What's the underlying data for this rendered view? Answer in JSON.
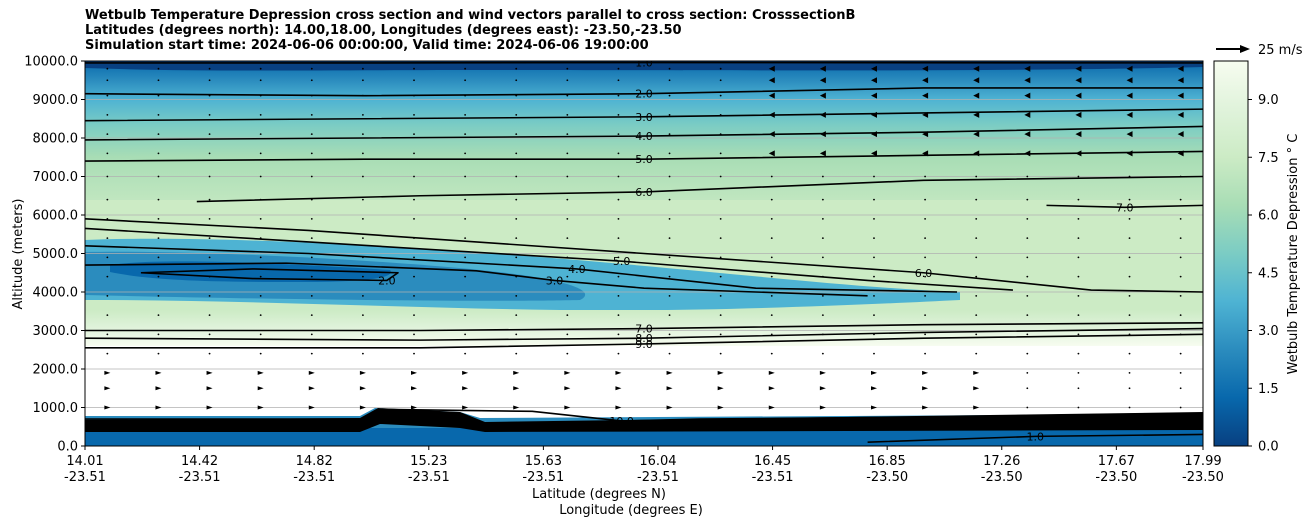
{
  "chart_data": {
    "type": "contour",
    "title_lines": [
      "Wetbulb Temperature Depression cross section and wind vectors parallel to cross section: CrosssectionB",
      "Latitudes (degrees north): 14.00,18.00, Longitudes (degrees east): -23.50,-23.50",
      "Simulation start time: 2024-06-06 00:00:00, Valid time: 2024-06-06 19:00:00"
    ],
    "ylabel": "Altitude (meters)",
    "xlabel_lat": "Latitude (degrees N)",
    "xlabel_lon": "Longitude (degrees E)",
    "ylim": [
      0,
      10000
    ],
    "y_ticks": [
      {
        "value": 0,
        "label": "0.0"
      },
      {
        "value": 1000,
        "label": "1000.0"
      },
      {
        "value": 2000,
        "label": "2000.0"
      },
      {
        "value": 3000,
        "label": "3000.0"
      },
      {
        "value": 4000,
        "label": "4000.0"
      },
      {
        "value": 5000,
        "label": "5000.0"
      },
      {
        "value": 6000,
        "label": "6000.0"
      },
      {
        "value": 7000,
        "label": "7000.0"
      },
      {
        "value": 8000,
        "label": "8000.0"
      },
      {
        "value": 9000,
        "label": "9000.0"
      },
      {
        "value": 10000,
        "label": "10000.0"
      }
    ],
    "x_ticks": [
      {
        "lat": "14.01",
        "lon": "-23.51"
      },
      {
        "lat": "14.42",
        "lon": "-23.51"
      },
      {
        "lat": "14.82",
        "lon": "-23.51"
      },
      {
        "lat": "15.23",
        "lon": "-23.51"
      },
      {
        "lat": "15.63",
        "lon": "-23.51"
      },
      {
        "lat": "16.04",
        "lon": "-23.51"
      },
      {
        "lat": "16.45",
        "lon": "-23.51"
      },
      {
        "lat": "16.85",
        "lon": "-23.50"
      },
      {
        "lat": "17.26",
        "lon": "-23.50"
      },
      {
        "lat": "17.67",
        "lon": "-23.50"
      },
      {
        "lat": "17.99",
        "lon": "-23.50"
      }
    ],
    "colorbar": {
      "label": "Wetbulb Temperature Depression ° C",
      "range": [
        0,
        10
      ],
      "ticks": [
        "0.0",
        "1.5",
        "3.0",
        "4.5",
        "6.0",
        "7.5",
        "9.0"
      ],
      "tick_values": [
        0,
        1.5,
        3,
        4.5,
        6,
        7.5,
        9
      ],
      "colors": [
        "#084081",
        "#0868ac",
        "#2b8cbe",
        "#4eb3d3",
        "#7bccc4",
        "#a8ddb5",
        "#ccebc5",
        "#e0f3db",
        "#f7fcf0"
      ]
    },
    "vector_key": {
      "label": "25 m/s",
      "speed": 25
    },
    "grid": true,
    "contours": [
      {
        "level": "1.0",
        "pts": [
          [
            0,
            9950
          ],
          [
            0.25,
            9950
          ],
          [
            0.5,
            9960
          ],
          [
            1,
            9950
          ]
        ]
      },
      {
        "level": "2.0",
        "pts": [
          [
            0,
            9150
          ],
          [
            0.25,
            9100
          ],
          [
            0.5,
            9150
          ],
          [
            0.75,
            9300
          ],
          [
            1,
            9300
          ]
        ]
      },
      {
        "level": "3.0",
        "pts": [
          [
            0,
            8450
          ],
          [
            0.25,
            8500
          ],
          [
            0.5,
            8550
          ],
          [
            0.75,
            8650
          ],
          [
            1,
            8750
          ]
        ]
      },
      {
        "level": "4.0",
        "pts": [
          [
            0,
            7950
          ],
          [
            0.25,
            8000
          ],
          [
            0.5,
            8050
          ],
          [
            0.75,
            8150
          ],
          [
            1,
            8300
          ]
        ]
      },
      {
        "level": "5.0",
        "pts": [
          [
            0,
            7400
          ],
          [
            0.25,
            7450
          ],
          [
            0.5,
            7450
          ],
          [
            0.75,
            7550
          ],
          [
            1,
            7650
          ]
        ]
      },
      {
        "level": "6.0",
        "pts": [
          [
            0.1,
            6350
          ],
          [
            0.3,
            6500
          ],
          [
            0.5,
            6600
          ],
          [
            0.75,
            6900
          ],
          [
            1,
            7000
          ]
        ]
      },
      {
        "level": "7.0",
        "pts": [
          [
            0.86,
            6250
          ],
          [
            0.93,
            6200
          ],
          [
            1,
            6250
          ]
        ]
      },
      {
        "level": "6.0",
        "pts": [
          [
            0,
            5900
          ],
          [
            0.2,
            5600
          ],
          [
            0.5,
            5000
          ],
          [
            0.75,
            4500
          ],
          [
            0.9,
            4050
          ],
          [
            1,
            4000
          ]
        ]
      },
      {
        "level": "5.0",
        "pts": [
          [
            0,
            5650
          ],
          [
            0.2,
            5300
          ],
          [
            0.48,
            4800
          ],
          [
            0.7,
            4300
          ],
          [
            0.83,
            4050
          ]
        ]
      },
      {
        "level": "4.0",
        "pts": [
          [
            0,
            5200
          ],
          [
            0.2,
            5000
          ],
          [
            0.44,
            4600
          ],
          [
            0.6,
            4100
          ],
          [
            0.78,
            4000
          ]
        ]
      },
      {
        "level": "3.0",
        "pts": [
          [
            0,
            4700
          ],
          [
            0.18,
            4750
          ],
          [
            0.35,
            4550
          ],
          [
            0.42,
            4300
          ],
          [
            0.5,
            4100
          ],
          [
            0.7,
            3900
          ]
        ]
      },
      {
        "level": "2.0",
        "pts": [
          [
            0.05,
            4500
          ],
          [
            0.15,
            4600
          ],
          [
            0.28,
            4500
          ],
          [
            0.27,
            4300
          ],
          [
            0.15,
            4350
          ],
          [
            0.05,
            4500
          ]
        ]
      },
      {
        "level": "7.0",
        "pts": [
          [
            0,
            3000
          ],
          [
            0.3,
            3000
          ],
          [
            0.5,
            3050
          ],
          [
            0.75,
            3150
          ],
          [
            1,
            3200
          ]
        ]
      },
      {
        "level": "8.0",
        "pts": [
          [
            0,
            2800
          ],
          [
            0.3,
            2750
          ],
          [
            0.5,
            2800
          ],
          [
            0.75,
            2950
          ],
          [
            1,
            3050
          ]
        ]
      },
      {
        "level": "9.0",
        "pts": [
          [
            0,
            2550
          ],
          [
            0.3,
            2550
          ],
          [
            0.5,
            2650
          ],
          [
            0.75,
            2800
          ],
          [
            1,
            2900
          ]
        ]
      },
      {
        "level": "10.0",
        "pts": [
          [
            0,
            700
          ],
          [
            0.25,
            700
          ],
          [
            0.27,
            950
          ],
          [
            0.4,
            900
          ],
          [
            0.48,
            650
          ],
          [
            0.55,
            700
          ],
          [
            0.75,
            750
          ],
          [
            1,
            850
          ]
        ]
      },
      {
        "level": "1.0",
        "pts": [
          [
            0.7,
            100
          ],
          [
            0.85,
            250
          ],
          [
            1,
            300
          ]
        ]
      }
    ],
    "annotations": []
  }
}
